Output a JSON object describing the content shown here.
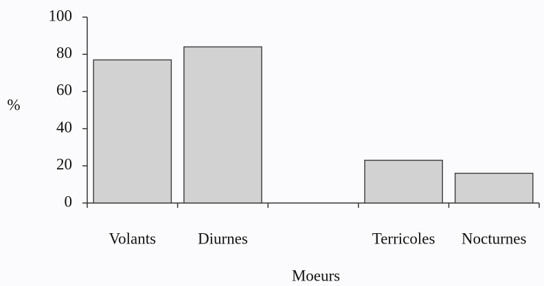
{
  "chart_data": {
    "type": "bar",
    "categories": [
      "Volants",
      "Diurnes",
      null,
      "Terricoles",
      "Nocturnes"
    ],
    "values": [
      77,
      84,
      null,
      23,
      16
    ],
    "color": "#d2d2d2",
    "ylabel": "%",
    "xlabel": "Moeurs",
    "ylim": [
      0,
      100
    ],
    "yticks": [
      0,
      20,
      40,
      60,
      80,
      100
    ],
    "grid": false
  }
}
